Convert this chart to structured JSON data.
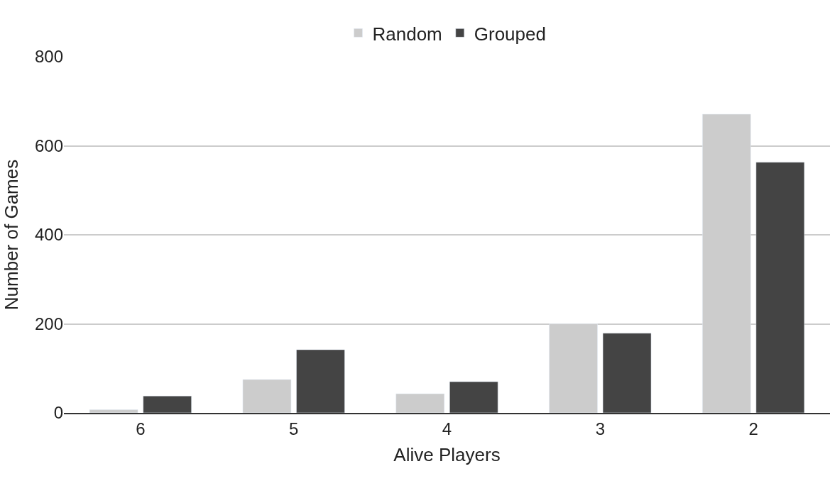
{
  "chart_data": {
    "type": "bar",
    "xlabel": "Alive Players",
    "ylabel": "Number of Games",
    "categories": [
      "6",
      "5",
      "4",
      "3",
      "2"
    ],
    "series": [
      {
        "name": "Random",
        "color": "#cccccc",
        "values": [
          7,
          75,
          43,
          200,
          671
        ]
      },
      {
        "name": "Grouped",
        "color": "#444444",
        "values": [
          38,
          142,
          70,
          179,
          563
        ]
      }
    ],
    "ylim": [
      0,
      800
    ],
    "yticks": [
      0,
      200,
      400,
      600,
      800
    ],
    "grid": "y",
    "legend": "top"
  }
}
